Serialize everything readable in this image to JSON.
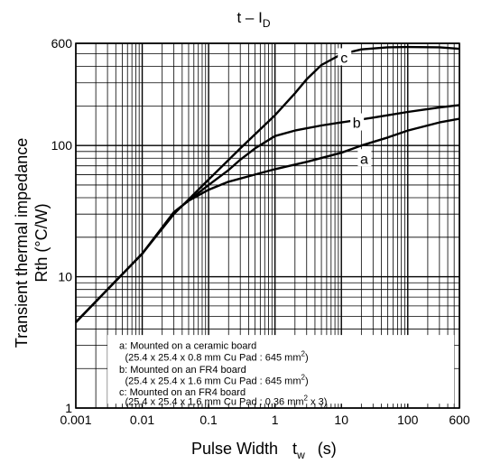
{
  "chart_data": {
    "type": "line",
    "title": "t – I",
    "title_sub": "D",
    "ylabel_line1": "Transient thermal impedance",
    "ylabel_line2": "Rth (°C/W)",
    "xlabel": "Pulse Width",
    "xlabel_var": "t",
    "xlabel_var_sub": "w",
    "xlabel_unit": "(s)",
    "x_scale": "log",
    "y_scale": "log",
    "xlim": [
      0.001,
      600
    ],
    "ylim": [
      1,
      600
    ],
    "grid": true,
    "x_ticks": [
      {
        "value": 0.001,
        "label": "0.001"
      },
      {
        "value": 0.01,
        "label": "0.01"
      },
      {
        "value": 0.1,
        "label": "0.1"
      },
      {
        "value": 1,
        "label": "1"
      },
      {
        "value": 10,
        "label": "10"
      },
      {
        "value": 100,
        "label": "100"
      },
      {
        "value": 600,
        "label": "600"
      }
    ],
    "y_ticks": [
      {
        "value": 1,
        "label": "1"
      },
      {
        "value": 10,
        "label": "10"
      },
      {
        "value": 100,
        "label": "100"
      },
      {
        "value": 600,
        "label": "600"
      }
    ],
    "series": [
      {
        "name": "a",
        "x": [
          0.001,
          0.003,
          0.01,
          0.03,
          0.05,
          0.1,
          0.2,
          0.5,
          1,
          3,
          10,
          20,
          50,
          100,
          300,
          600
        ],
        "y": [
          4.5,
          8,
          15,
          31,
          38,
          46,
          53,
          60,
          66,
          75,
          88,
          100,
          115,
          130,
          150,
          160
        ]
      },
      {
        "name": "b",
        "x": [
          0.001,
          0.003,
          0.01,
          0.03,
          0.1,
          0.2,
          0.3,
          0.5,
          1,
          2,
          5,
          10,
          30,
          100,
          300,
          600
        ],
        "y": [
          4.5,
          8,
          15,
          31,
          50,
          65,
          78,
          95,
          118,
          130,
          142,
          150,
          163,
          180,
          195,
          203
        ]
      },
      {
        "name": "c",
        "x": [
          0.001,
          0.003,
          0.01,
          0.03,
          0.1,
          0.3,
          1,
          2,
          3,
          5,
          10,
          20,
          50,
          100,
          300,
          600
        ],
        "y": [
          4.5,
          8,
          15,
          30,
          55,
          95,
          170,
          250,
          320,
          410,
          495,
          540,
          560,
          562,
          560,
          545
        ]
      }
    ],
    "legend": [
      {
        "key": "a",
        "text": ": Mounted on a ceramic board",
        "detail": "(25.4 x 25.4 x 0.8 mm   Cu Pad : 645 mm",
        "sup": "2",
        "tail": ")"
      },
      {
        "key": "b",
        "text": ": Mounted on an FR4 board",
        "detail": "(25.4 x 25.4 x 1.6 mm   Cu Pad : 645 mm",
        "sup": "2",
        "tail": ")"
      },
      {
        "key": "c",
        "text": ": Mounted on an FR4 board",
        "detail": "(25.4 x 25.4 x 1.6 mm   Cu Pad : 0.36 mm",
        "sup": "2",
        "tail": " x 3)"
      }
    ]
  }
}
